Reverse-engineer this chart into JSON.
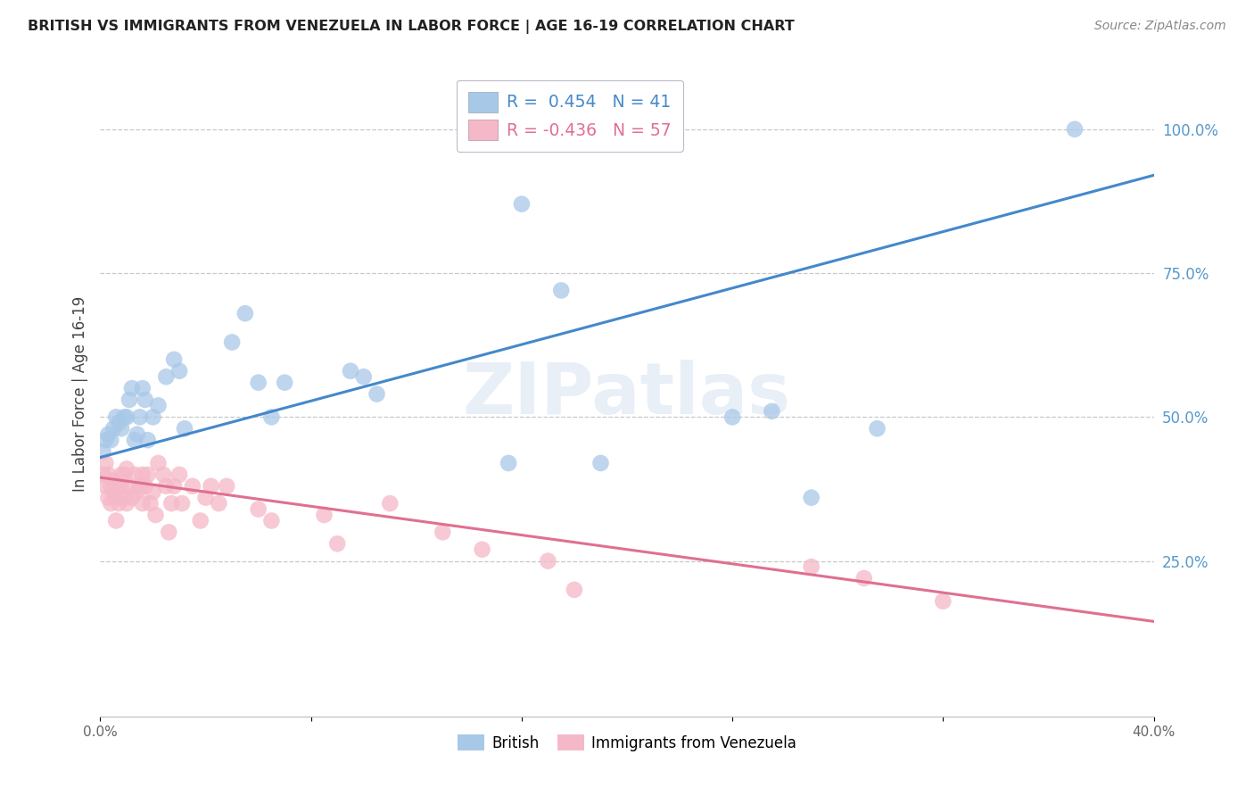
{
  "title": "BRITISH VS IMMIGRANTS FROM VENEZUELA IN LABOR FORCE | AGE 16-19 CORRELATION CHART",
  "source": "Source: ZipAtlas.com",
  "ylabel": "In Labor Force | Age 16-19",
  "xlim": [
    0.0,
    0.4
  ],
  "ylim": [
    -0.02,
    1.1
  ],
  "xticks": [
    0.0,
    0.08,
    0.16,
    0.24,
    0.32,
    0.4
  ],
  "xtick_labels": [
    "0.0%",
    "",
    "",
    "",
    "",
    "40.0%"
  ],
  "ytick_labels_right": [
    "100.0%",
    "75.0%",
    "50.0%",
    "25.0%"
  ],
  "ytick_positions_right": [
    1.0,
    0.75,
    0.5,
    0.25
  ],
  "background_color": "#ffffff",
  "grid_color": "#c8c8c8",
  "watermark": "ZIPatlas",
  "british_color": "#a8c8e8",
  "venezuela_color": "#f5b8c8",
  "british_line_color": "#4488cc",
  "venezuela_line_color": "#e07090",
  "legend_british_R": " 0.454",
  "legend_british_N": "41",
  "legend_venezuela_R": "-0.436",
  "legend_venezuela_N": "57",
  "brit_line_x0": 0.0,
  "brit_line_y0": 0.43,
  "brit_line_x1": 0.4,
  "brit_line_y1": 0.92,
  "ven_line_x0": 0.0,
  "ven_line_y0": 0.395,
  "ven_line_x1": 0.4,
  "ven_line_y1": 0.145,
  "british_scatter_x": [
    0.001,
    0.002,
    0.003,
    0.004,
    0.005,
    0.006,
    0.007,
    0.008,
    0.009,
    0.01,
    0.011,
    0.012,
    0.013,
    0.014,
    0.015,
    0.016,
    0.017,
    0.018,
    0.02,
    0.022,
    0.025,
    0.028,
    0.03,
    0.032,
    0.05,
    0.055,
    0.06,
    0.065,
    0.07,
    0.095,
    0.1,
    0.105,
    0.16,
    0.175,
    0.19,
    0.255,
    0.27,
    0.37,
    0.24,
    0.155,
    0.295
  ],
  "british_scatter_y": [
    0.44,
    0.46,
    0.47,
    0.46,
    0.48,
    0.5,
    0.49,
    0.48,
    0.5,
    0.5,
    0.53,
    0.55,
    0.46,
    0.47,
    0.5,
    0.55,
    0.53,
    0.46,
    0.5,
    0.52,
    0.57,
    0.6,
    0.58,
    0.48,
    0.63,
    0.68,
    0.56,
    0.5,
    0.56,
    0.58,
    0.57,
    0.54,
    0.87,
    0.72,
    0.42,
    0.51,
    0.36,
    1.0,
    0.5,
    0.42,
    0.48
  ],
  "venezuela_scatter_x": [
    0.001,
    0.002,
    0.002,
    0.003,
    0.003,
    0.004,
    0.004,
    0.005,
    0.005,
    0.006,
    0.006,
    0.007,
    0.007,
    0.008,
    0.008,
    0.009,
    0.009,
    0.01,
    0.01,
    0.011,
    0.012,
    0.013,
    0.014,
    0.015,
    0.016,
    0.016,
    0.017,
    0.018,
    0.019,
    0.02,
    0.021,
    0.022,
    0.024,
    0.025,
    0.026,
    0.027,
    0.028,
    0.03,
    0.031,
    0.035,
    0.038,
    0.04,
    0.042,
    0.045,
    0.048,
    0.06,
    0.065,
    0.085,
    0.09,
    0.11,
    0.13,
    0.145,
    0.17,
    0.18,
    0.27,
    0.29,
    0.32
  ],
  "venezuela_scatter_y": [
    0.4,
    0.42,
    0.38,
    0.36,
    0.4,
    0.38,
    0.35,
    0.37,
    0.39,
    0.36,
    0.32,
    0.35,
    0.38,
    0.38,
    0.4,
    0.36,
    0.4,
    0.41,
    0.35,
    0.38,
    0.36,
    0.4,
    0.37,
    0.38,
    0.4,
    0.35,
    0.38,
    0.4,
    0.35,
    0.37,
    0.33,
    0.42,
    0.4,
    0.38,
    0.3,
    0.35,
    0.38,
    0.4,
    0.35,
    0.38,
    0.32,
    0.36,
    0.38,
    0.35,
    0.38,
    0.34,
    0.32,
    0.33,
    0.28,
    0.35,
    0.3,
    0.27,
    0.25,
    0.2,
    0.24,
    0.22,
    0.18
  ]
}
